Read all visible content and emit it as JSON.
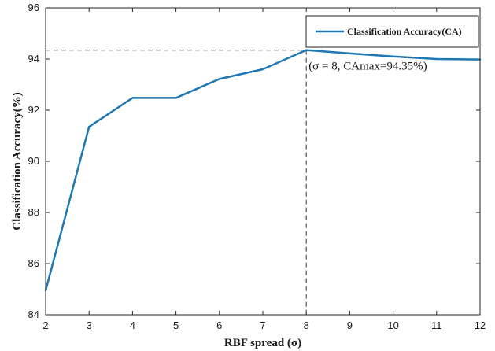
{
  "chart_data": {
    "type": "line",
    "xlabel": "RBF spread (σ)",
    "ylabel": "Classification Accuracy(%)",
    "xlim": [
      2,
      12
    ],
    "ylim": [
      84,
      96
    ],
    "x_ticks": [
      "2",
      "3",
      "4",
      "5",
      "6",
      "7",
      "8",
      "9",
      "10",
      "11",
      "12"
    ],
    "y_ticks": [
      "84",
      "86",
      "88",
      "90",
      "92",
      "94",
      "96"
    ],
    "grid": false,
    "legend_position": "top-right",
    "series": [
      {
        "name": "Classification Accuracy(CA)",
        "color": "#1f77b4",
        "x": [
          2,
          3,
          4,
          5,
          6,
          7,
          8,
          9,
          10,
          11,
          12
        ],
        "y": [
          84.95,
          91.35,
          92.48,
          92.48,
          93.22,
          93.6,
          94.35,
          94.22,
          94.1,
          94.0,
          93.98
        ]
      }
    ],
    "reference_point": {
      "x": 8,
      "y": 94.35
    },
    "annotation": "(σ = 8, CAmax=94.35%)"
  }
}
